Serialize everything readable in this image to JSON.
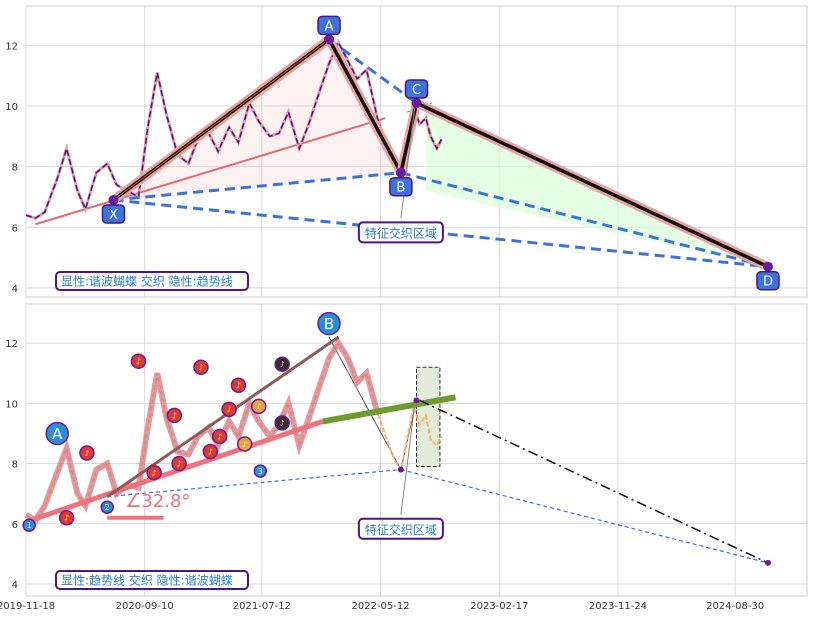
{
  "chart_data": {
    "type": "line",
    "x_ticks": [
      "2019-11-18",
      "2020-09-10",
      "2021-07-12",
      "2022-05-12",
      "2023-02-17",
      "2023-11-24",
      "2024-08-30"
    ],
    "panels": [
      {
        "name": "top",
        "y_ticks": [
          4,
          6,
          8,
          10,
          12
        ],
        "ylim": [
          3.7,
          13.3
        ],
        "legend_text": "显性:谐波蝴蝶 交织 隐性:趋势线",
        "zone_label": "特征交织区域",
        "price_series": [
          [
            0,
            6.4
          ],
          [
            6,
            6.3
          ],
          [
            12,
            6.5
          ],
          [
            20,
            7.6
          ],
          [
            26,
            8.6
          ],
          [
            33,
            7.2
          ],
          [
            38,
            6.6
          ],
          [
            45,
            7.8
          ],
          [
            52,
            8.1
          ],
          [
            58,
            7.4
          ],
          [
            65,
            7.2
          ],
          [
            72,
            7.0
          ],
          [
            78,
            9.3
          ],
          [
            84,
            11.1
          ],
          [
            90,
            9.7
          ],
          [
            97,
            8.4
          ],
          [
            104,
            8.1
          ],
          [
            110,
            8.9
          ],
          [
            117,
            9.1
          ],
          [
            123,
            8.5
          ],
          [
            130,
            9.3
          ],
          [
            136,
            8.8
          ],
          [
            143,
            10.1
          ],
          [
            149,
            9.5
          ],
          [
            156,
            9.0
          ],
          [
            162,
            9.1
          ],
          [
            168,
            9.8
          ],
          [
            175,
            8.6
          ],
          [
            181,
            9.4
          ],
          [
            188,
            10.5
          ],
          [
            194,
            11.4
          ],
          [
            200,
            12.1
          ],
          [
            206,
            11.5
          ],
          [
            212,
            10.9
          ],
          [
            218,
            11.2
          ],
          [
            225,
            9.6
          ],
          [
            231,
            8.7
          ],
          [
            236,
            8.0
          ],
          [
            240,
            7.6
          ],
          [
            244,
            8.8
          ],
          [
            248,
            10.0
          ],
          [
            252,
            9.4
          ],
          [
            256,
            9.6
          ],
          [
            259,
            9.0
          ],
          [
            263,
            8.6
          ],
          [
            266,
            8.9
          ]
        ],
        "pattern": {
          "points": [
            {
              "label": "X",
              "x": 56,
              "y": 6.9
            },
            {
              "label": "A",
              "x": 194,
              "y": 12.2
            },
            {
              "label": "B",
              "x": 240,
              "y": 7.8
            },
            {
              "label": "C",
              "x": 250,
              "y": 10.1
            },
            {
              "label": "D",
              "x": 475,
              "y": 4.7
            }
          ]
        },
        "trendline": [
          [
            6,
            6.1
          ],
          [
            230,
            9.6
          ]
        ],
        "ghost_segment": [
          [
            244,
            9.8
          ],
          [
            260,
            10.1
          ]
        ]
      },
      {
        "name": "bottom",
        "y_ticks": [
          4,
          6,
          8,
          10,
          12
        ],
        "ylim": [
          3.6,
          13.3
        ],
        "legend_text": "显性:趋势线 交织 隐性:谐波蝴蝶",
        "zone_label": "特征交织区域",
        "angle_label": "∠32.8°",
        "price_series": [
          [
            0,
            6.3
          ],
          [
            6,
            6.1
          ],
          [
            12,
            6.6
          ],
          [
            20,
            7.7
          ],
          [
            26,
            8.5
          ],
          [
            33,
            7.0
          ],
          [
            38,
            6.6
          ],
          [
            45,
            7.8
          ],
          [
            52,
            8.0
          ],
          [
            58,
            7.0
          ],
          [
            65,
            7.3
          ],
          [
            72,
            7.2
          ],
          [
            78,
            9.2
          ],
          [
            84,
            11.0
          ],
          [
            90,
            9.5
          ],
          [
            97,
            8.4
          ],
          [
            104,
            8.3
          ],
          [
            110,
            8.9
          ],
          [
            117,
            9.2
          ],
          [
            123,
            8.6
          ],
          [
            130,
            9.4
          ],
          [
            136,
            8.9
          ],
          [
            143,
            10.0
          ],
          [
            149,
            9.4
          ],
          [
            156,
            8.9
          ],
          [
            162,
            9.3
          ],
          [
            168,
            10.0
          ],
          [
            175,
            8.6
          ],
          [
            181,
            9.5
          ],
          [
            188,
            10.6
          ],
          [
            194,
            11.5
          ],
          [
            200,
            12.0
          ],
          [
            206,
            11.5
          ],
          [
            212,
            10.7
          ],
          [
            218,
            11.0
          ],
          [
            225,
            9.7
          ],
          [
            231,
            8.8
          ],
          [
            236,
            8.1
          ],
          [
            240,
            7.8
          ],
          [
            244,
            8.8
          ],
          [
            248,
            9.9
          ],
          [
            252,
            9.3
          ],
          [
            256,
            9.6
          ],
          [
            259,
            8.8
          ],
          [
            263,
            8.6
          ],
          [
            266,
            8.9
          ]
        ],
        "trend_support": [
          [
            2,
            6.1
          ],
          [
            190,
            9.4
          ]
        ],
        "trend_channel": [
          [
            52,
            6.9
          ],
          [
            200,
            12.2
          ]
        ],
        "wave_markers": [
          {
            "x": 2,
            "y": 5.95,
            "label": "1",
            "kind": "blue-small"
          },
          {
            "x": 20,
            "y": 9.0,
            "label": "A",
            "kind": "blue-big"
          },
          {
            "x": 26,
            "y": 6.2,
            "label": "♪",
            "kind": "red"
          },
          {
            "x": 39,
            "y": 8.35,
            "label": "♪",
            "kind": "red"
          },
          {
            "x": 52,
            "y": 6.55,
            "label": "2",
            "kind": "blue-small"
          },
          {
            "x": 72,
            "y": 11.4,
            "label": "♪",
            "kind": "red"
          },
          {
            "x": 82,
            "y": 7.7,
            "label": "♪",
            "kind": "red"
          },
          {
            "x": 95,
            "y": 9.6,
            "label": "♪",
            "kind": "red"
          },
          {
            "x": 98,
            "y": 8.0,
            "label": "♪",
            "kind": "red"
          },
          {
            "x": 112,
            "y": 11.2,
            "label": "♪",
            "kind": "red"
          },
          {
            "x": 118,
            "y": 8.4,
            "label": "♪",
            "kind": "red"
          },
          {
            "x": 124,
            "y": 8.9,
            "label": "♪",
            "kind": "red"
          },
          {
            "x": 130,
            "y": 9.8,
            "label": "♪",
            "kind": "red"
          },
          {
            "x": 136,
            "y": 10.6,
            "label": "♪",
            "kind": "red"
          },
          {
            "x": 140,
            "y": 8.65,
            "label": "♪",
            "kind": "orange"
          },
          {
            "x": 149,
            "y": 9.9,
            "label": "♪",
            "kind": "orange"
          },
          {
            "x": 150,
            "y": 7.75,
            "label": "3",
            "kind": "blue-small"
          },
          {
            "x": 164,
            "y": 11.3,
            "label": "♪",
            "kind": "dark"
          },
          {
            "x": 164,
            "y": 9.35,
            "label": "♪",
            "kind": "dark"
          },
          {
            "x": 194,
            "y": 12.65,
            "label": "B",
            "kind": "blue-big"
          }
        ],
        "hidden_pattern": {
          "points": [
            [
              52,
              6.9
            ],
            [
              194,
              12.2
            ],
            [
              240,
              7.8
            ],
            [
              250,
              10.1
            ],
            [
              475,
              4.7
            ]
          ]
        },
        "zone_box": {
          "x0": 250,
          "x1": 265,
          "y0": 7.9,
          "y1": 11.2
        },
        "forecast": [
          [
            252,
            10.1
          ],
          [
            475,
            4.7
          ]
        ]
      }
    ],
    "x_range": [
      0,
      500
    ]
  }
}
